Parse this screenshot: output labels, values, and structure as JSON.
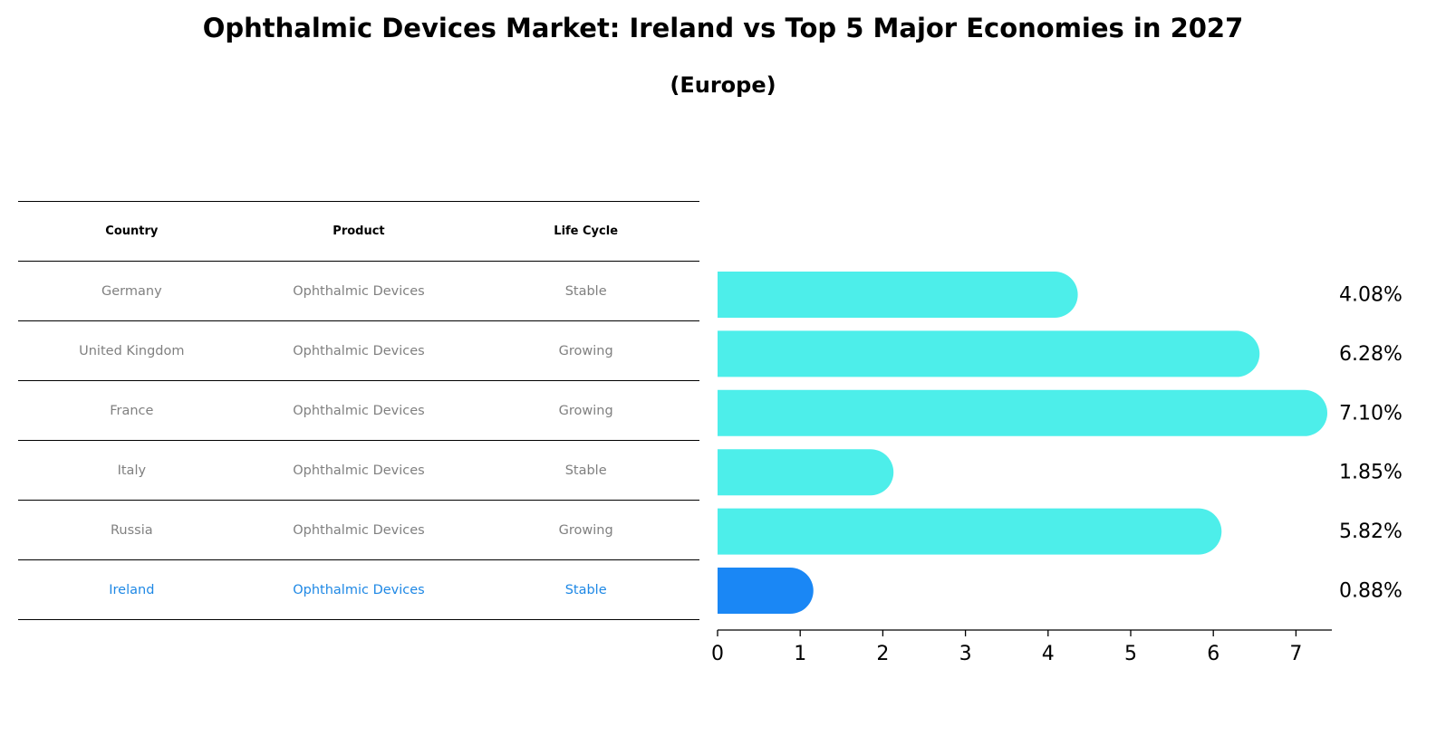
{
  "title": "Ophthalmic Devices Market: Ireland vs Top 5 Major Economies in 2027",
  "subtitle": "(Europe)",
  "table": {
    "headers": [
      "Country",
      "Product",
      "Life Cycle"
    ],
    "rows": [
      {
        "country": "Germany",
        "product": "Ophthalmic Devices",
        "life_cycle": "Stable"
      },
      {
        "country": "United Kingdom",
        "product": "Ophthalmic Devices",
        "life_cycle": "Growing"
      },
      {
        "country": "France",
        "product": "Ophthalmic Devices",
        "life_cycle": "Growing"
      },
      {
        "country": "Italy",
        "product": "Ophthalmic Devices",
        "life_cycle": "Stable"
      },
      {
        "country": "Russia",
        "product": "Ophthalmic Devices",
        "life_cycle": "Growing"
      },
      {
        "country": "Ireland",
        "product": "Ophthalmic Devices",
        "life_cycle": "Stable"
      }
    ],
    "highlight_row": 5
  },
  "chart_data": {
    "type": "bar",
    "orientation": "horizontal",
    "categories": [
      "Germany",
      "United Kingdom",
      "France",
      "Italy",
      "Russia",
      "Ireland"
    ],
    "values": [
      4.08,
      6.28,
      7.1,
      1.85,
      5.82,
      0.88
    ],
    "value_labels": [
      "4.08%",
      "6.28%",
      "7.10%",
      "1.85%",
      "5.82%",
      "0.88%"
    ],
    "xlim": [
      0,
      7.45
    ],
    "xticks": [
      0,
      1,
      2,
      3,
      4,
      5,
      6,
      7
    ],
    "highlight_index": 5,
    "colors": {
      "default": "#4deeea",
      "highlight": "#1a87f5"
    }
  }
}
